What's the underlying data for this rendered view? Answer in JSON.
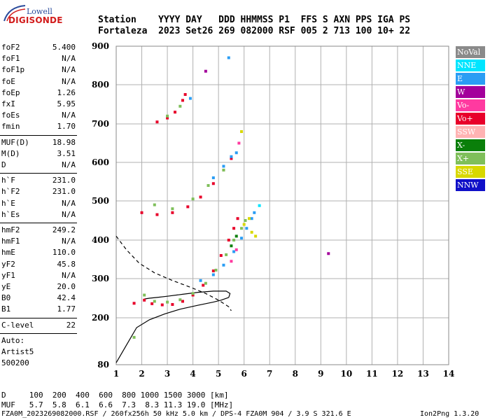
{
  "logo": {
    "top_text": "Lowell",
    "main_text": "DIGISONDE"
  },
  "header": {
    "line1": "Station    YYYY DAY   DDD HHMMSS P1  FFS S AXN PPS IGA PS",
    "line2": "Fortaleza  2023 Set26 269 082000 RSF 005 2 713 100 10+ 22"
  },
  "parameters": [
    {
      "label": "foF2",
      "value": "5.400"
    },
    {
      "label": "foF1",
      "value": "N/A"
    },
    {
      "label": "foF1p",
      "value": "N/A"
    },
    {
      "label": "foE",
      "value": "N/A"
    },
    {
      "label": "foEp",
      "value": "1.26"
    },
    {
      "label": "fxI",
      "value": "5.95"
    },
    {
      "label": "foEs",
      "value": "N/A"
    },
    {
      "label": "fmin",
      "value": "1.70"
    }
  ],
  "muf_params": [
    {
      "label": "MUF(D)",
      "value": "18.98"
    },
    {
      "label": "M(D)",
      "value": "3.51"
    },
    {
      "label": "D",
      "value": "N/A"
    }
  ],
  "height_params": [
    {
      "label": "h`F",
      "value": "231.0"
    },
    {
      "label": "h`F2",
      "value": "231.0"
    },
    {
      "label": "h`E",
      "value": "N/A"
    },
    {
      "label": "h`Es",
      "value": "N/A"
    }
  ],
  "profile_params": [
    {
      "label": "hmF2",
      "value": "249.2"
    },
    {
      "label": "hmF1",
      "value": "N/A"
    },
    {
      "label": "hmE",
      "value": "110.0"
    },
    {
      "label": "yF2",
      "value": "45.8"
    },
    {
      "label": "yF1",
      "value": "N/A"
    },
    {
      "label": "yE",
      "value": "20.0"
    },
    {
      "label": "B0",
      "value": "42.4"
    },
    {
      "label": "B1",
      "value": "1.77"
    }
  ],
  "c_level": {
    "label": "C-level",
    "value": "22"
  },
  "auto": {
    "line1": "Auto:",
    "line2": "Artist5",
    "line3": "500200"
  },
  "legend": [
    {
      "label": "NoVal",
      "color": "#8a8a8a"
    },
    {
      "label": "NNE",
      "color": "#00e5ff"
    },
    {
      "label": "E",
      "color": "#2a9df4"
    },
    {
      "label": "W",
      "color": "#a3009b"
    },
    {
      "label": "Vo-",
      "color": "#ff3aa0"
    },
    {
      "label": "Vo+",
      "color": "#e8002a"
    },
    {
      "label": "SSW",
      "color": "#ffb3b3"
    },
    {
      "label": "X-",
      "color": "#0a7f0a"
    },
    {
      "label": "X+",
      "color": "#7fbf5a"
    },
    {
      "label": "SSE",
      "color": "#d8d800"
    },
    {
      "label": "NNW",
      "color": "#1010c8"
    }
  ],
  "footer": {
    "d_line": "D     100  200  400  600  800 1000 1500 3000 [km]",
    "muf_line": "MUF   5.7  5.8  6.1  6.6  7.3  8.3 11.3 19.0 [MHz]",
    "file_line": "FZA0M_2023269082000.RSF / 260fx256h 50 kHz 5.0 km / DPS-4 FZA0M 904 / 3.9 S 321.6 E",
    "version": "Ion2Png 1.3.20"
  },
  "chart_data": {
    "type": "scatter",
    "x_ticks": [
      "1",
      "2",
      "3",
      "4",
      "5",
      "6",
      "7",
      "8",
      "9",
      "10",
      "11",
      "12",
      "13",
      "14"
    ],
    "y_ticks": [
      "80",
      "200",
      "300",
      "400",
      "500",
      "600",
      "700",
      "800",
      "900"
    ],
    "xlim": [
      1,
      14
    ],
    "ylim": [
      80,
      900
    ],
    "grid": true,
    "legend_position": "right",
    "series": [
      {
        "legend": "Vo+",
        "color": "#e8002a",
        "points": [
          [
            1.7,
            237
          ],
          [
            2.1,
            245
          ],
          [
            2.4,
            236
          ],
          [
            2.8,
            233
          ],
          [
            3.2,
            234
          ],
          [
            3.6,
            242
          ],
          [
            4.0,
            258
          ],
          [
            4.4,
            283
          ],
          [
            4.8,
            320
          ],
          [
            5.1,
            360
          ],
          [
            5.4,
            400
          ],
          [
            5.6,
            430
          ],
          [
            5.75,
            455
          ],
          [
            2.0,
            470
          ],
          [
            2.6,
            465
          ],
          [
            3.2,
            470
          ],
          [
            3.8,
            485
          ],
          [
            4.3,
            510
          ],
          [
            4.8,
            545
          ],
          [
            5.2,
            580
          ],
          [
            5.5,
            610
          ],
          [
            2.6,
            705
          ],
          [
            3.0,
            715
          ],
          [
            3.3,
            730
          ],
          [
            3.6,
            760
          ],
          [
            3.7,
            775
          ]
        ]
      },
      {
        "legend": "X+",
        "color": "#7fbf5a",
        "points": [
          [
            1.7,
            150
          ],
          [
            2.1,
            258
          ],
          [
            2.5,
            242
          ],
          [
            3.0,
            240
          ],
          [
            3.5,
            246
          ],
          [
            4.0,
            262
          ],
          [
            4.5,
            288
          ],
          [
            4.9,
            322
          ],
          [
            5.3,
            362
          ],
          [
            5.6,
            400
          ],
          [
            5.9,
            430
          ],
          [
            6.05,
            450
          ],
          [
            2.5,
            490
          ],
          [
            3.2,
            480
          ],
          [
            4.0,
            505
          ],
          [
            4.6,
            540
          ],
          [
            5.2,
            580
          ],
          [
            3.0,
            720
          ],
          [
            3.5,
            745
          ]
        ]
      },
      {
        "legend": "E",
        "color": "#2a9df4",
        "points": [
          [
            4.3,
            295
          ],
          [
            4.8,
            310
          ],
          [
            5.2,
            335
          ],
          [
            5.6,
            370
          ],
          [
            5.9,
            405
          ],
          [
            6.1,
            430
          ],
          [
            6.3,
            455
          ],
          [
            6.4,
            470
          ],
          [
            4.8,
            560
          ],
          [
            5.2,
            590
          ],
          [
            5.5,
            615
          ],
          [
            5.7,
            625
          ],
          [
            3.9,
            765
          ],
          [
            5.4,
            870
          ]
        ]
      },
      {
        "legend": "SSE",
        "color": "#d8d800",
        "points": [
          [
            6.0,
            440
          ],
          [
            6.2,
            455
          ],
          [
            6.3,
            420
          ],
          [
            6.45,
            410
          ],
          [
            5.9,
            680
          ]
        ]
      },
      {
        "legend": "W",
        "color": "#a3009b",
        "points": [
          [
            9.3,
            365
          ],
          [
            4.5,
            835
          ]
        ]
      },
      {
        "legend": "Vo-",
        "color": "#ff3aa0",
        "points": [
          [
            5.8,
            650
          ],
          [
            5.5,
            345
          ],
          [
            5.7,
            375
          ]
        ]
      },
      {
        "legend": "NNE",
        "color": "#00e5ff",
        "points": [
          [
            6.6,
            488
          ]
        ]
      },
      {
        "legend": "X-",
        "color": "#0a7f0a",
        "points": [
          [
            5.7,
            410
          ],
          [
            5.5,
            385
          ]
        ]
      }
    ],
    "lines": [
      {
        "name": "virtual-height-trace",
        "style": "dashed",
        "points": [
          [
            1.0,
            410
          ],
          [
            1.4,
            375
          ],
          [
            1.9,
            340
          ],
          [
            2.5,
            315
          ],
          [
            3.2,
            295
          ],
          [
            3.9,
            278
          ],
          [
            4.5,
            262
          ],
          [
            5.0,
            245
          ],
          [
            5.4,
            228
          ],
          [
            5.5,
            218
          ]
        ]
      },
      {
        "name": "profile-lower",
        "style": "solid",
        "points": [
          [
            1.0,
            85
          ],
          [
            1.4,
            130
          ],
          [
            1.8,
            175
          ],
          [
            2.3,
            195
          ],
          [
            2.9,
            210
          ],
          [
            3.5,
            222
          ],
          [
            4.2,
            232
          ],
          [
            4.8,
            240
          ],
          [
            5.1,
            245
          ],
          [
            5.4,
            252
          ]
        ]
      },
      {
        "name": "profile-upper",
        "style": "solid",
        "points": [
          [
            5.4,
            252
          ],
          [
            5.45,
            262
          ],
          [
            5.3,
            268
          ],
          [
            4.8,
            268
          ],
          [
            4.2,
            265
          ],
          [
            3.6,
            260
          ],
          [
            3.0,
            255
          ],
          [
            2.6,
            252
          ],
          [
            2.3,
            250
          ],
          [
            2.1,
            248
          ]
        ]
      }
    ]
  }
}
